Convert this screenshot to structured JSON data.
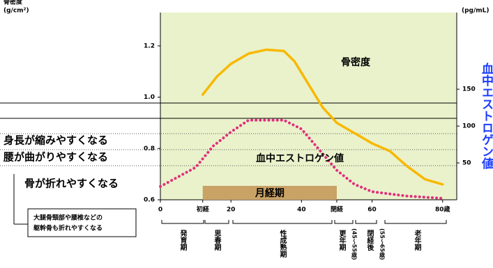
{
  "chart_data": {
    "type": "line",
    "y_label": "骨密度",
    "y_unit": "(g/cm²)",
    "y2_label": "血中エストロゲン値",
    "y2_unit": "(pg/mL)",
    "xlim": [
      0,
      84
    ],
    "xticks": [
      0,
      {
        "value": 12,
        "label": "初経"
      },
      20,
      40,
      {
        "value": 50,
        "label": "閉経"
      },
      60,
      {
        "value": 80,
        "label": "80歳"
      }
    ],
    "ylim": [
      0.6,
      1.33
    ],
    "yticks": [
      0.6,
      0.8,
      {
        "value": 1,
        "label": "1.0"
      },
      1.2
    ],
    "y2lim": [
      0,
      254
    ],
    "y2ticks": [
      50,
      100,
      150
    ],
    "series": [
      {
        "name": "骨密度",
        "color": "#f8b800",
        "x": [
          12,
          16,
          20,
          25,
          30,
          35,
          38,
          42,
          46,
          50,
          55,
          60,
          65,
          70,
          75,
          80
        ],
        "values": [
          1.01,
          1.08,
          1.13,
          1.17,
          1.185,
          1.18,
          1.14,
          1.05,
          0.96,
          0.9,
          0.86,
          0.82,
          0.79,
          0.73,
          0.68,
          0.66
        ]
      },
      {
        "name": "血中エストロゲン値",
        "color": "#e0307a",
        "axis": "y2",
        "dotted": true,
        "x": [
          0,
          10,
          15,
          20,
          25,
          30,
          35,
          40,
          45,
          50,
          55,
          60,
          70,
          80
        ],
        "values": [
          18,
          44,
          73,
          92,
          108,
          108,
          108,
          96,
          68,
          40,
          21,
          11,
          5,
          2
        ]
      }
    ],
    "menstrual_period": {
      "label": "月経期",
      "start": 12,
      "end": 50
    },
    "effects": [
      "身長が縮みやすくなる",
      "腰が曲がりやすくなる",
      "骨が折れやすくなる"
    ],
    "note": [
      "大腿骨頸部や腰椎などの",
      "躯幹骨も折れやすくなる"
    ],
    "stages": [
      {
        "label": "発育期"
      },
      {
        "label": "思春期"
      },
      {
        "label": "性成熟期"
      },
      {
        "label": "更年期",
        "sub": "(45〜55歳)"
      },
      {
        "label": "閉経後",
        "sub": "(55〜65歳)"
      },
      {
        "label": "老年期"
      }
    ]
  }
}
